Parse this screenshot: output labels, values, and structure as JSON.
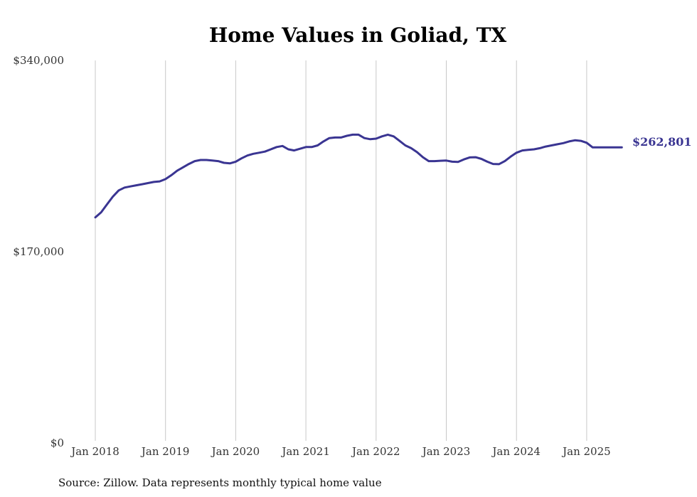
{
  "chart_data": {
    "type": "line",
    "title": "Home Values in Goliad, TX",
    "xlabel": "",
    "ylabel": "",
    "ylim": [
      0,
      340000
    ],
    "y_ticks": [
      0,
      170000,
      340000
    ],
    "y_tick_labels": [
      "$0",
      "$170,000",
      "$340,000"
    ],
    "x_ticks": [
      "Jan 2018",
      "Jan 2019",
      "Jan 2020",
      "Jan 2021",
      "Jan 2022",
      "Jan 2023",
      "Jan 2024",
      "Jan 2025"
    ],
    "x_tick_positions": [
      0,
      12,
      24,
      36,
      48,
      60,
      72,
      84
    ],
    "grid": "vertical",
    "line_color": "#3a3592",
    "end_label": "$262,801",
    "series": [
      {
        "name": "Typical home value",
        "start": "Jan 2018",
        "x": [
          0,
          1,
          2,
          3,
          4,
          5,
          6,
          7,
          8,
          9,
          10,
          11,
          12,
          13,
          14,
          15,
          16,
          17,
          18,
          19,
          20,
          21,
          22,
          23,
          24,
          25,
          26,
          27,
          28,
          29,
          30,
          31,
          32,
          33,
          34,
          35,
          36,
          37,
          38,
          39,
          40,
          41,
          42,
          43,
          44,
          45,
          46,
          47,
          48,
          49,
          50,
          51,
          52,
          53,
          54,
          55,
          56,
          57,
          58,
          59,
          60,
          61,
          62,
          63,
          64,
          65,
          66,
          67,
          68,
          69,
          70,
          71,
          72,
          73,
          74,
          75,
          76,
          77,
          78,
          79,
          80,
          81,
          82,
          83,
          84,
          85,
          86,
          87,
          88,
          89,
          90
        ],
        "values": [
          200500,
          205000,
          212000,
          219000,
          224500,
          227000,
          228000,
          229000,
          230000,
          231000,
          232000,
          232500,
          234500,
          238000,
          242000,
          245000,
          248000,
          250500,
          251500,
          251500,
          251000,
          250500,
          249000,
          248500,
          250000,
          253000,
          255500,
          257000,
          258000,
          259000,
          261000,
          263000,
          264000,
          261000,
          260000,
          261500,
          263000,
          263000,
          264500,
          268000,
          271000,
          271500,
          271500,
          273000,
          274000,
          274000,
          271000,
          270000,
          270500,
          272500,
          274000,
          272500,
          268500,
          264500,
          262000,
          258500,
          254000,
          250500,
          250500,
          250800,
          251000,
          250000,
          249800,
          252000,
          253800,
          254000,
          252500,
          250000,
          248000,
          247800,
          250500,
          254500,
          258000,
          260000,
          260500,
          261000,
          262000,
          263500,
          264500,
          265500,
          266500,
          268000,
          269000,
          268500,
          266800,
          262801,
          262801,
          262801,
          262801,
          262801,
          262801
        ]
      }
    ]
  },
  "source": "Source: Zillow. Data represents monthly typical home value"
}
